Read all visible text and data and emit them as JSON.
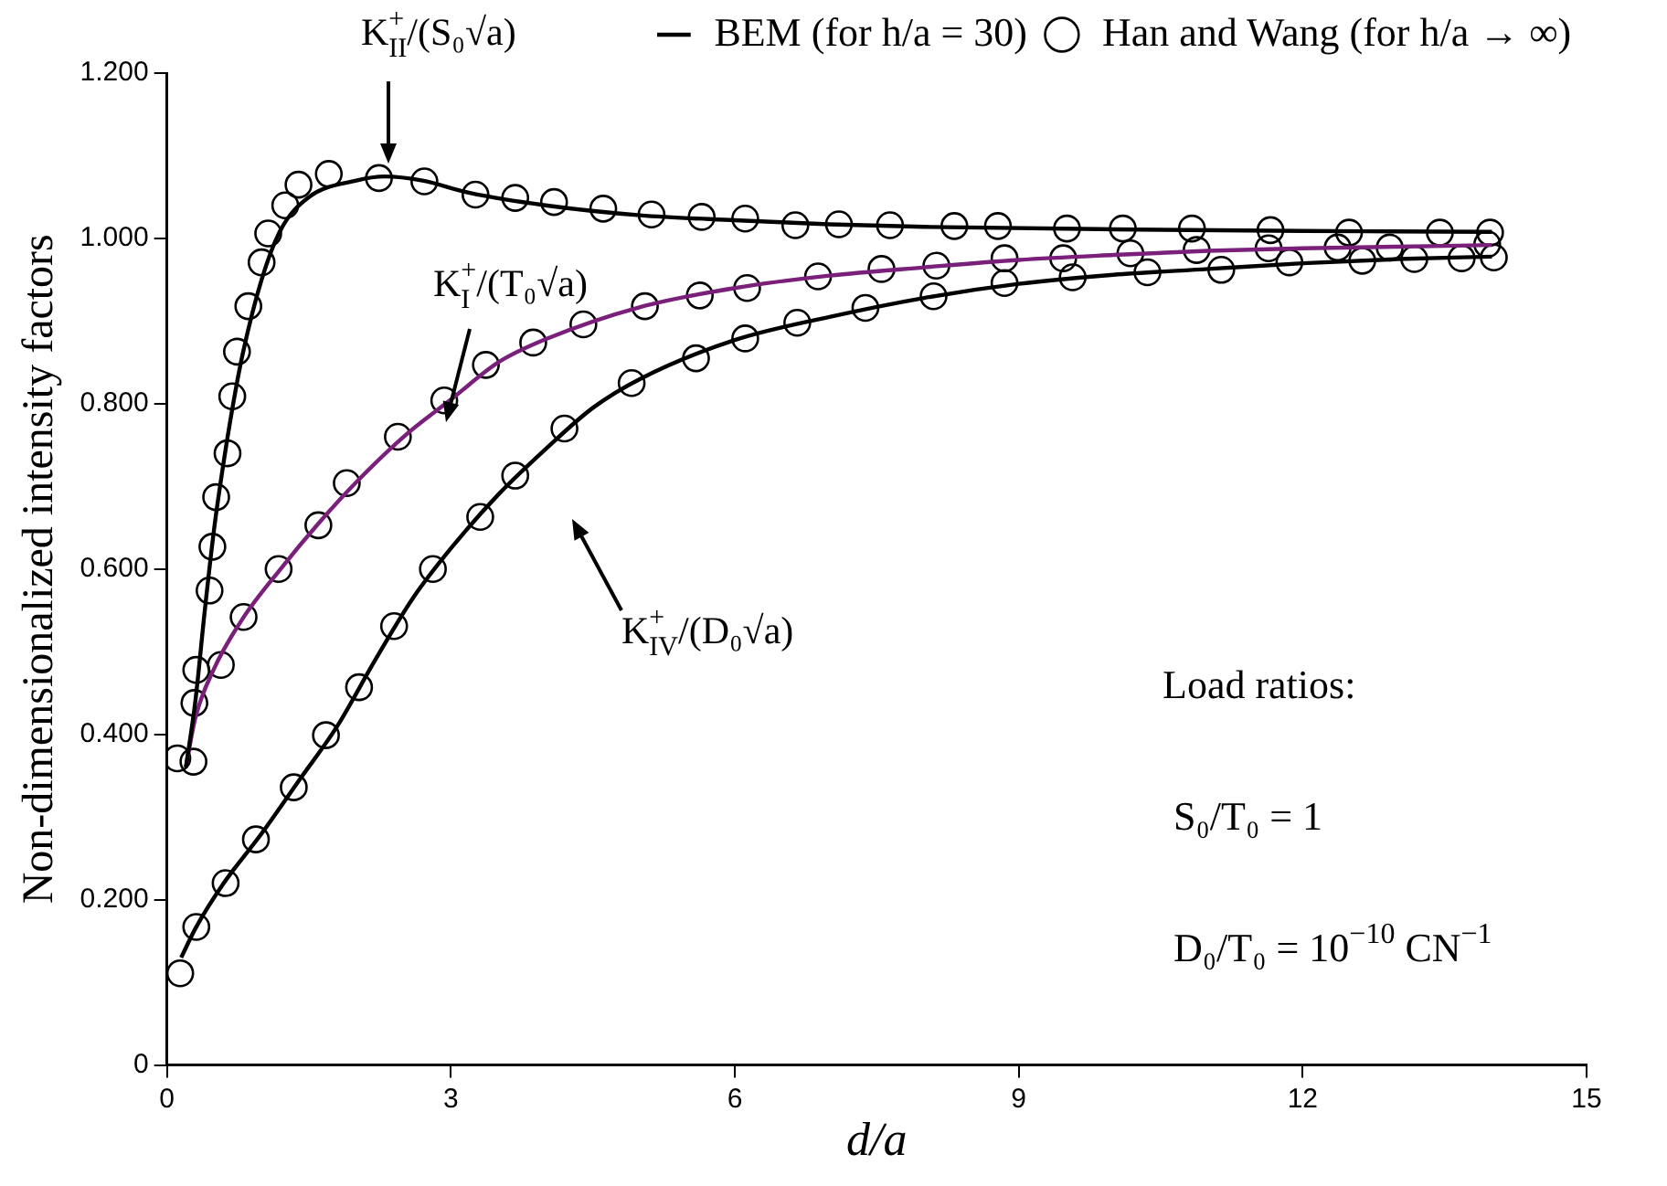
{
  "chart_data": {
    "type": "line",
    "xlabel": "d/a",
    "ylabel": "Non-dimensionalized intensity factors",
    "xlim": [
      0,
      15
    ],
    "xticks": [
      0,
      3,
      6,
      9,
      12,
      15
    ],
    "ylim": [
      0,
      1.2
    ],
    "yticks": [
      0,
      {
        "value": 0.2,
        "label": "0.200"
      },
      {
        "value": 0.4,
        "label": "0.400"
      },
      {
        "value": 0.6,
        "label": "0.600"
      },
      {
        "value": 0.8,
        "label": "0.800"
      },
      {
        "value": 1.0,
        "label": "1.000"
      },
      {
        "value": 1.2,
        "label": "1.200"
      }
    ],
    "grid": false,
    "legend": "top right",
    "line_style": "solid",
    "series": [
      {
        "name": "BEM (for h/a = 30)",
        "marker": "none",
        "color": "#000000",
        "x": [
          0.2,
          0.3,
          0.4,
          0.5,
          0.6,
          0.7,
          0.8,
          1.0,
          1.2,
          1.5,
          2.0,
          2.3,
          2.7,
          3.2,
          4,
          5,
          6,
          7,
          8,
          10,
          12,
          14
        ],
        "values": [
          0.36,
          0.44,
          0.55,
          0.65,
          0.73,
          0.8,
          0.86,
          0.95,
          1.01,
          1.05,
          1.07,
          1.075,
          1.07,
          1.055,
          1.04,
          1.028,
          1.022,
          1.017,
          1.014,
          1.011,
          1.009,
          1.008
        ]
      },
      {
        "marker": "none",
        "color": "#7a1f7a",
        "x": [
          0.2,
          0.3,
          0.5,
          0.8,
          1.2,
          1.6,
          2,
          2.5,
          3,
          3.5,
          4,
          5,
          6,
          7,
          8,
          9,
          10,
          11,
          12,
          13,
          14
        ],
        "values": [
          0.36,
          0.42,
          0.48,
          0.54,
          0.6,
          0.655,
          0.705,
          0.76,
          0.805,
          0.85,
          0.878,
          0.917,
          0.94,
          0.955,
          0.965,
          0.974,
          0.98,
          0.985,
          0.988,
          0.99,
          0.992
        ]
      },
      {
        "marker": "none",
        "color": "#000000",
        "x": [
          0.15,
          0.3,
          0.6,
          1,
          1.4,
          1.8,
          2.2,
          2.6,
          3,
          3.5,
          4,
          4.5,
          5,
          6,
          7,
          8,
          9,
          10,
          11,
          12,
          13,
          14
        ],
        "values": [
          0.13,
          0.165,
          0.22,
          0.28,
          0.345,
          0.41,
          0.49,
          0.565,
          0.625,
          0.69,
          0.745,
          0.795,
          0.83,
          0.877,
          0.905,
          0.928,
          0.945,
          0.956,
          0.963,
          0.97,
          0.975,
          0.978
        ]
      },
      {
        "name": "Han and Wang (for h/a → ∞)",
        "type": "scatter",
        "marker": "circle",
        "color": "#000000",
        "x": [
          0.11,
          0.29,
          0.31,
          0.45,
          0.48,
          0.52,
          0.64,
          0.69,
          0.74,
          0.86,
          1.0,
          1.07,
          1.25,
          1.39,
          1.71,
          2.24,
          2.72,
          3.26,
          3.68,
          4.09,
          4.61,
          5.12,
          5.65,
          6.11,
          6.64,
          7.1,
          7.64,
          8.32,
          8.78,
          9.51,
          10.1,
          10.83,
          11.66,
          12.49,
          13.45,
          13.98
        ],
        "values": [
          0.371,
          0.438,
          0.478,
          0.574,
          0.627,
          0.687,
          0.74,
          0.809,
          0.863,
          0.918,
          0.971,
          1.006,
          1.04,
          1.065,
          1.078,
          1.073,
          1.069,
          1.053,
          1.049,
          1.044,
          1.036,
          1.029,
          1.026,
          1.024,
          1.016,
          1.017,
          1.016,
          1.015,
          1.015,
          1.012,
          1.012,
          1.012,
          1.01,
          1.007,
          1.007,
          1.007
        ]
      },
      {
        "type": "scatter",
        "marker": "circle",
        "color": "#000000",
        "x": [
          0.28,
          0.57,
          0.81,
          1.18,
          1.6,
          1.9,
          2.44,
          2.93,
          3.37,
          3.87,
          4.4,
          5.05,
          5.63,
          6.13,
          6.88,
          7.55,
          8.13,
          8.85,
          9.47,
          10.18,
          10.88,
          11.64,
          12.37,
          12.92,
          13.95
        ],
        "values": [
          0.367,
          0.484,
          0.542,
          0.6,
          0.653,
          0.704,
          0.76,
          0.804,
          0.847,
          0.874,
          0.896,
          0.918,
          0.931,
          0.94,
          0.954,
          0.963,
          0.967,
          0.976,
          0.976,
          0.982,
          0.986,
          0.988,
          0.989,
          0.989,
          0.993
        ]
      },
      {
        "type": "scatter",
        "marker": "circle",
        "color": "#000000",
        "x": [
          0.14,
          0.31,
          0.62,
          0.94,
          1.34,
          1.68,
          2.03,
          2.4,
          2.81,
          3.31,
          3.68,
          4.2,
          4.91,
          5.59,
          6.11,
          6.66,
          7.38,
          8.1,
          8.85,
          9.57,
          10.36,
          11.14,
          11.86,
          12.63,
          13.18,
          13.68,
          14.02
        ],
        "values": [
          0.111,
          0.167,
          0.22,
          0.273,
          0.336,
          0.399,
          0.457,
          0.531,
          0.6,
          0.663,
          0.713,
          0.77,
          0.825,
          0.855,
          0.879,
          0.898,
          0.916,
          0.93,
          0.946,
          0.953,
          0.959,
          0.962,
          0.971,
          0.973,
          0.975,
          0.976,
          0.977
        ]
      }
    ],
    "annotations": [
      {
        "text": "K$_{II}$$^{+}$/(S₀√a)",
        "x": 2.34,
        "y": 1.075
      },
      "K$_{I}$$^{+}$/(T₀√a)",
      "K$_{IV}$$^{+}$/(D₀√a)",
      "Load ratios:",
      "S₀/T₀ = 1",
      "D₀/T₀ = 10$^{−10}$ CN$^{−1}$"
    ]
  }
}
